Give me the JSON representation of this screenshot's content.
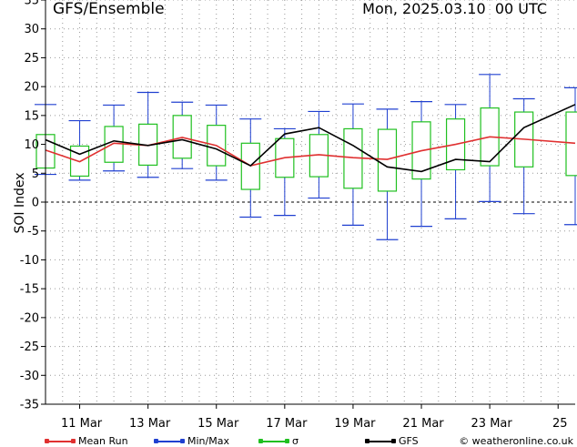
{
  "header": {
    "title": "GFS/Ensemble",
    "date": "Mon, 2025.03.10",
    "run": "00 UTC"
  },
  "legend": [
    {
      "label": "Mean Run",
      "color": "#e03030"
    },
    {
      "label": "Min/Max",
      "color": "#2040d0"
    },
    {
      "label": "σ",
      "color": "#20c020"
    },
    {
      "label": "GFS",
      "color": "#000000"
    }
  ],
  "credit": "© weatheronline.co.uk",
  "chart_data": {
    "type": "line",
    "ylabel": "SOI Index",
    "ylim": [
      -35,
      35
    ],
    "yticks": [
      -35,
      -30,
      -25,
      -20,
      -15,
      -10,
      -5,
      0,
      5,
      10,
      15,
      20,
      25,
      30,
      35
    ],
    "x_tick_labels": [
      "11 Mar",
      "13 Mar",
      "15 Mar",
      "17 Mar",
      "19 Mar",
      "21 Mar",
      "23 Mar",
      "25"
    ],
    "x_tick_days": [
      11,
      13,
      15,
      17,
      19,
      21,
      23,
      25
    ],
    "xlim": [
      10,
      25.5
    ],
    "grid": true,
    "x_days": [
      10.0,
      10.5,
      11.0,
      11.5,
      12.0,
      12.5,
      13.0,
      13.5,
      14.0,
      14.5,
      15.0,
      15.5,
      16.0,
      16.5,
      17.0,
      17.5,
      18.0,
      18.5,
      19.0,
      19.5,
      20.0,
      20.5,
      21.0,
      21.5,
      22.0,
      22.5,
      23.0,
      23.5,
      24.0,
      24.5,
      25.0,
      25.5
    ],
    "series": [
      {
        "name": "Mean Run",
        "color": "#e03030",
        "x": [
          10,
          11,
          12,
          13,
          14,
          15,
          16,
          17,
          18,
          19,
          20,
          21,
          22,
          23,
          24,
          25.5
        ],
        "values": [
          9,
          7,
          10.2,
          9.8,
          11.2,
          9.8,
          6.3,
          7.7,
          8.2,
          7.7,
          7.4,
          8.9,
          10,
          11.3,
          10.9,
          10.2
        ]
      },
      {
        "name": "GFS",
        "color": "#000000",
        "x": [
          10,
          11,
          12,
          13,
          14,
          15,
          16,
          17,
          18,
          19,
          20,
          21,
          22,
          23,
          24,
          25.5
        ],
        "values": [
          10.8,
          8.3,
          10.6,
          9.8,
          10.8,
          9.2,
          6.3,
          11.8,
          12.9,
          9.8,
          6.1,
          5.3,
          7.4,
          7,
          12.9,
          16.9
        ]
      }
    ],
    "boxes": {
      "x": [
        10,
        11,
        12,
        13,
        14,
        15,
        16,
        17,
        18,
        19,
        20,
        21,
        22,
        23,
        24,
        25.5
      ],
      "min": [
        4.8,
        3.8,
        5.4,
        4.3,
        5.8,
        3.8,
        -2.6,
        -2.3,
        0.7,
        -4,
        -6.5,
        -4.2,
        -2.9,
        0.1,
        -2,
        -3.9
      ],
      "max": [
        16.9,
        14.1,
        16.8,
        19,
        17.3,
        16.8,
        14.4,
        12.7,
        15.7,
        17,
        16.1,
        17.4,
        16.9,
        22.1,
        17.9,
        19.8
      ],
      "sigma_low": [
        5.9,
        4.5,
        6.9,
        6.4,
        7.6,
        6.3,
        2.2,
        4.3,
        4.4,
        2.4,
        1.9,
        4,
        5.6,
        6.3,
        6.1,
        4.6
      ],
      "sigma_high": [
        11.7,
        9.7,
        13.1,
        13.5,
        15,
        13.3,
        10.2,
        11,
        11.7,
        12.7,
        12.6,
        13.9,
        14.4,
        16.3,
        15.6,
        15.6
      ]
    }
  }
}
